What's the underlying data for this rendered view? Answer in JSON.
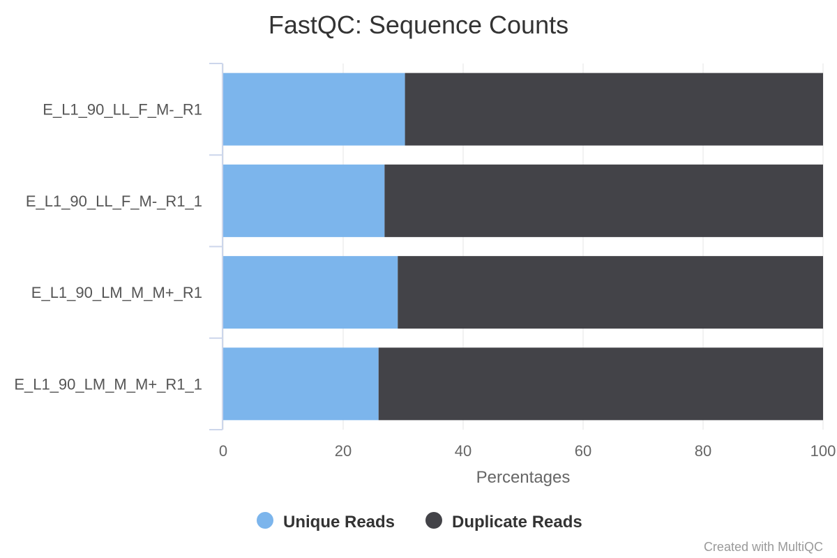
{
  "colors": {
    "unique": "#7cb5ec",
    "duplicate": "#434348",
    "grid": "#e6e6e6",
    "axis_line": "#ccd6eb"
  },
  "credit": "Created with MultiQC",
  "chart_data": {
    "type": "bar",
    "orientation": "horizontal",
    "stacked": true,
    "title": "FastQC: Sequence Counts",
    "xlabel": "Percentages",
    "ylabel": "",
    "xlim": [
      0,
      100
    ],
    "x_ticks": [
      "0",
      "20",
      "40",
      "60",
      "80",
      "100"
    ],
    "grid": true,
    "legend_position": "bottom",
    "categories": [
      "E_L1_90_LL_F_M-_R1",
      "E_L1_90_LL_F_M-_R1_1",
      "E_L1_90_LM_M_M+_R1",
      "E_L1_90_LM_M_M+_R1_1"
    ],
    "series": [
      {
        "name": "Unique Reads",
        "color": "#7cb5ec",
        "values": [
          30.3,
          26.9,
          29.1,
          25.9
        ]
      },
      {
        "name": "Duplicate Reads",
        "color": "#434348",
        "values": [
          69.7,
          73.1,
          70.9,
          74.1
        ]
      }
    ]
  }
}
